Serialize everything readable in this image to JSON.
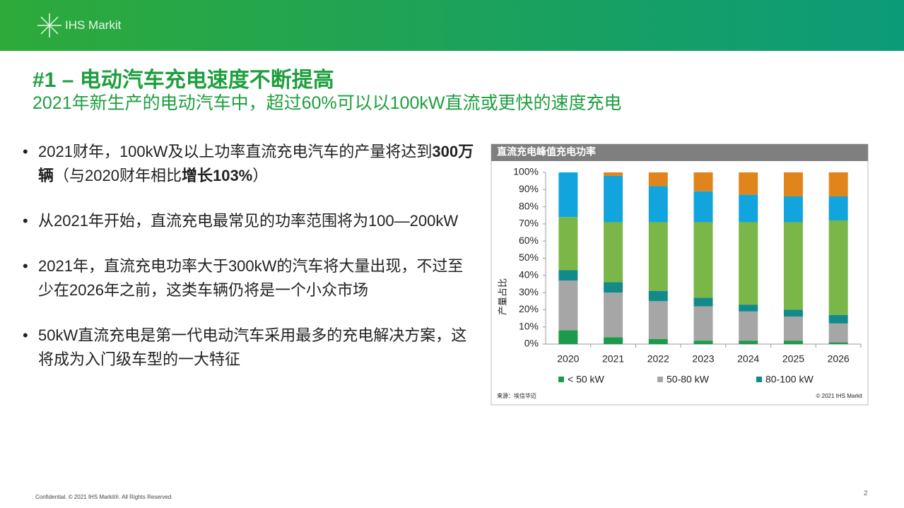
{
  "header": {
    "logo": "IHS Markit",
    "title": "#1 – 电动汽车充电速度不断提高",
    "subtitle": "2021年新生产的电动汽车中，超过60%可以以100kW直流或更快的速度充电"
  },
  "bullets": [
    [
      {
        "text": "2021财年，100kW及以上功率直流充电汽车的产量将达到",
        "bold": false
      },
      {
        "text": "300万辆",
        "bold": true
      },
      {
        "text": "（与2020财年相比",
        "bold": false
      },
      {
        "text": "增长103%",
        "bold": true
      },
      {
        "text": "）",
        "bold": false
      }
    ],
    [
      {
        "text": "从2021年开始，直流充电最常见的功率范围将为100—200kW",
        "bold": false
      }
    ],
    [
      {
        "text": "2021年，直流充电功率大于300kW的汽车将大量出现，不过至少在2026年之前，这类车辆仍将是一个小众市场",
        "bold": false
      }
    ],
    [
      {
        "text": "50kW直流充电是第一代电动汽车采用最多的充电解决方案，这将成为入门级车型的一大特征",
        "bold": false
      }
    ]
  ],
  "chart_data": {
    "type": "stacked_bar",
    "title": "直流充电峰值充电功率",
    "y_label": "产量占比",
    "categories": [
      "2020",
      "2021",
      "2022",
      "2023",
      "2024",
      "2025",
      "2026"
    ],
    "series": [
      {
        "name": "< 50 kW",
        "color": "#1a9a4a",
        "values": [
          8,
          4,
          3,
          2,
          2,
          2,
          1
        ]
      },
      {
        "name": "50-80 kW",
        "color": "#a6a6a6",
        "values": [
          29,
          26,
          22,
          20,
          17,
          14,
          11
        ]
      },
      {
        "name": "80-100 kW",
        "color": "#138a8a",
        "values": [
          6,
          6,
          6,
          5,
          4,
          4,
          5
        ]
      },
      {
        "color": "#7ab648",
        "values": [
          31,
          35,
          40,
          44,
          48,
          51,
          55
        ]
      },
      {
        "color": "#12a4dc",
        "values": [
          26,
          27,
          21,
          18,
          16,
          15,
          14
        ]
      },
      {
        "color": "#e0851b",
        "values": [
          0,
          2,
          8,
          11,
          13,
          14,
          14
        ]
      }
    ],
    "ylim": [
      0,
      100
    ],
    "yticks": [
      {
        "value": 0,
        "label": "0%"
      },
      {
        "value": 10,
        "label": "10%"
      },
      {
        "value": 20,
        "label": "20%"
      },
      {
        "value": 30,
        "label": "30%"
      },
      {
        "value": 40,
        "label": "40%"
      },
      {
        "value": 50,
        "label": "50%"
      },
      {
        "value": 60,
        "label": "60%"
      },
      {
        "value": 70,
        "label": "70%"
      },
      {
        "value": 80,
        "label": "80%"
      },
      {
        "value": 90,
        "label": "90%"
      },
      {
        "value": 100,
        "label": "100%"
      }
    ],
    "source": "来源：埃信华迈",
    "copyright": "© 2021 IHS Markit"
  },
  "footer": {
    "confidential": "Confidential. © 2021 IHS Markit®. All Rights Reserved.",
    "page": "2"
  }
}
